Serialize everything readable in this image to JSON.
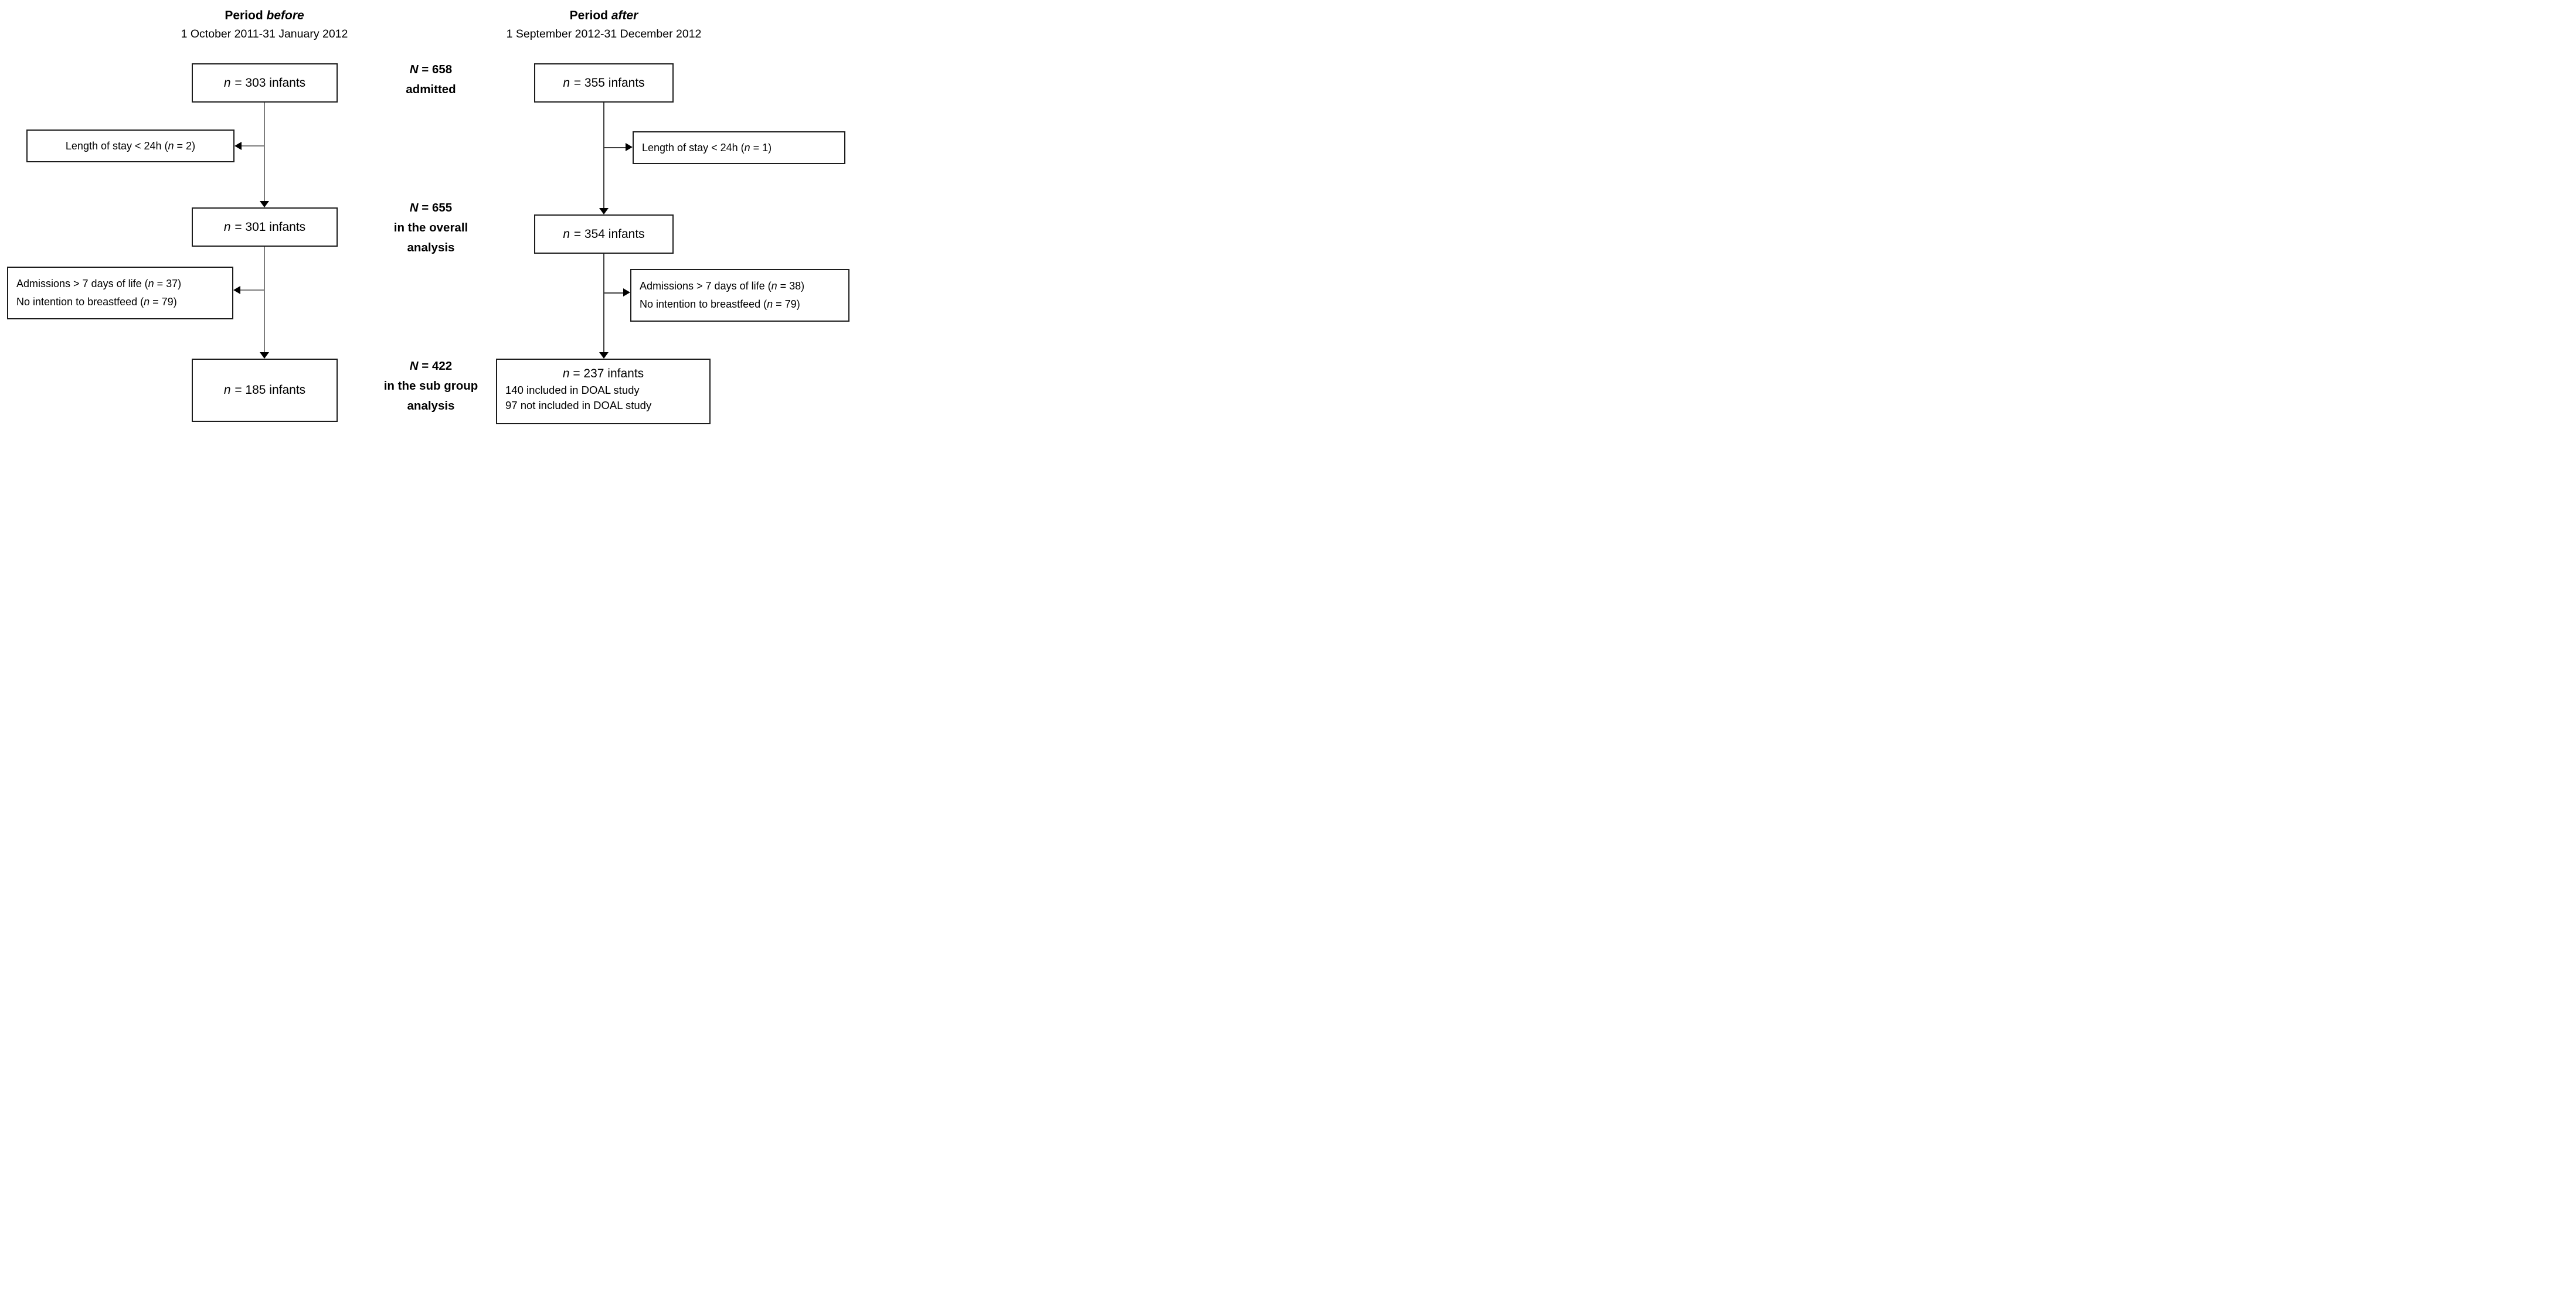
{
  "before": {
    "title_prefix": "Period ",
    "title_emph": "before",
    "subtitle": "1 October 2011-31 January 2012",
    "flow": [
      {
        "sym": "n",
        "text": " = 303 infants"
      },
      {
        "sym": "n",
        "text": " = 301 infants"
      },
      {
        "sym": "n",
        "text": " = 185 infants"
      }
    ],
    "exclusions": [
      {
        "line1": {
          "pre": "Length of stay < 24h (",
          "sym": "n",
          "post": " = 2)"
        }
      },
      {
        "line1": {
          "pre": "Admissions > 7 days of life (",
          "sym": "n",
          "post": " = 37)"
        },
        "line2": {
          "pre": "No intention to breastfeed (",
          "sym": "n",
          "post": " = 79)"
        }
      }
    ]
  },
  "after": {
    "title_prefix": "Period ",
    "title_emph": "after",
    "subtitle": "1 September 2012-31 December 2012",
    "flow": [
      {
        "sym": "n",
        "text": " = 355 infants"
      },
      {
        "sym": "n",
        "text": " = 354 infants"
      },
      {
        "sym": "n",
        "text": " = 237 infants"
      }
    ],
    "subgroup_details": [
      "140 included in DOAL study",
      "97 not included in DOAL study"
    ],
    "exclusions": [
      {
        "line1": {
          "pre": "Length of stay < 24h (",
          "sym": "n",
          "post": " = 1)"
        }
      },
      {
        "line1": {
          "pre": "Admissions > 7 days of life (",
          "sym": "n",
          "post": " = 38)"
        },
        "line2": {
          "pre": "No intention to breastfeed (",
          "sym": "n",
          "post": " = 79)"
        }
      }
    ]
  },
  "center": [
    {
      "sym": "N",
      "text": " = 658",
      "lines": [
        "admitted"
      ]
    },
    {
      "sym": "N",
      "text": " = 655",
      "lines": [
        "in the overall",
        "analysis"
      ]
    },
    {
      "sym": "N",
      "text": " = 422",
      "lines": [
        "in the sub group",
        "analysis"
      ]
    }
  ],
  "colors": {
    "line_before": "#7c7c7c",
    "line_after": "#3d3d3d",
    "arrowhead": "#000000",
    "box_border": "#1c1c1c",
    "text": "#000000",
    "background": "#ffffff"
  }
}
